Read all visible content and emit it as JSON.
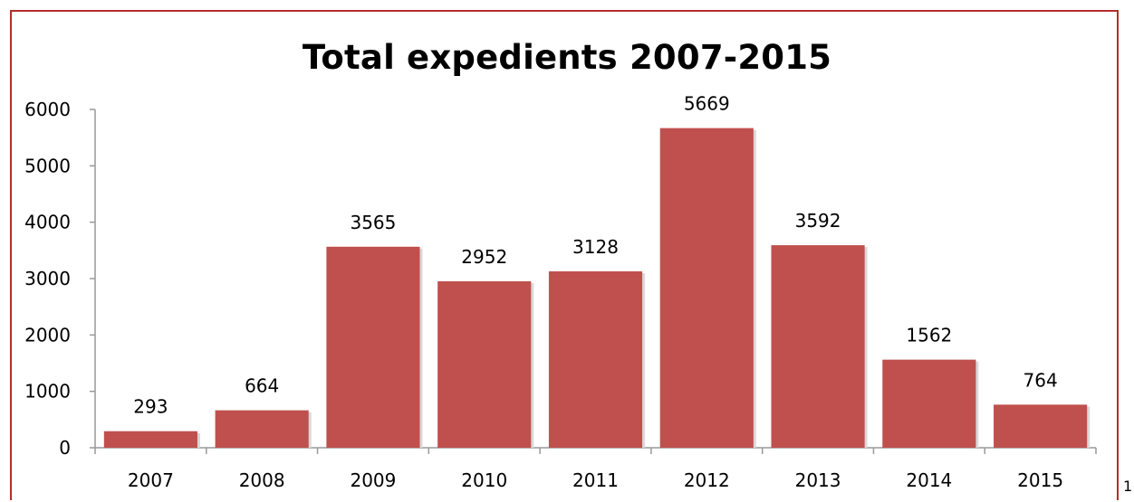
{
  "chart_data": {
    "type": "bar",
    "title": "Total expedients 2007-2015",
    "categories": [
      "2007",
      "2008",
      "2009",
      "2010",
      "2011",
      "2012",
      "2013",
      "2014",
      "2015"
    ],
    "values": [
      293,
      664,
      3565,
      2952,
      3128,
      5669,
      3592,
      1562,
      764
    ],
    "data_labels": [
      "293",
      "664",
      "3565",
      "2952",
      "3128",
      "5669",
      "3592",
      "1562",
      "764"
    ],
    "yticks": [
      "0",
      "1000",
      "2000",
      "3000",
      "4000",
      "5000",
      "6000"
    ],
    "ylim": [
      0,
      6000
    ],
    "xlabel": "",
    "ylabel": "",
    "grid": false,
    "bar_color": "#c0504d"
  },
  "page_number": "1",
  "colors": {
    "frame": "#b32d2d",
    "axis": "#999999"
  }
}
